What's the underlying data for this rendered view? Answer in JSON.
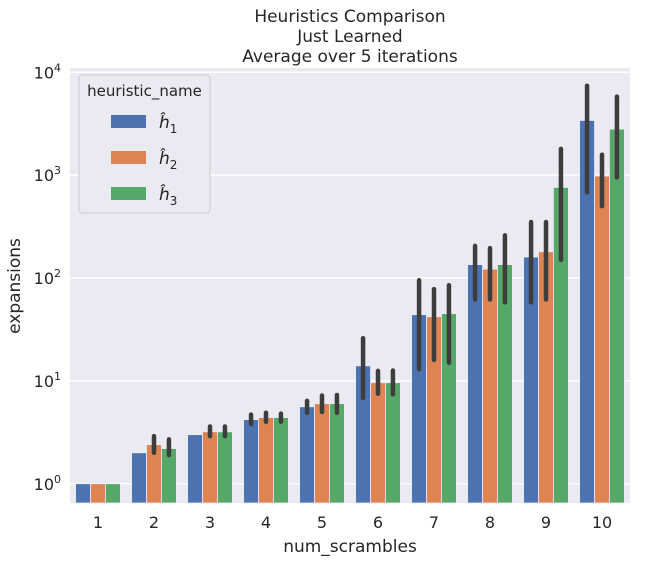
{
  "chart_data": {
    "type": "bar",
    "title": [
      "Heuristics Comparison",
      "Just Learned",
      "Average over 5 iterations"
    ],
    "xlabel": "num_scrambles",
    "ylabel": "expansions",
    "yscale": "log",
    "ylim": [
      0.65,
      11000
    ],
    "ytick_values": [
      1,
      10,
      100,
      1000,
      10000
    ],
    "ytick_labels": [
      {
        "base": "10",
        "exp": "0"
      },
      {
        "base": "10",
        "exp": "1"
      },
      {
        "base": "10",
        "exp": "2"
      },
      {
        "base": "10",
        "exp": "3"
      },
      {
        "base": "10",
        "exp": "4"
      }
    ],
    "categories": [
      "1",
      "2",
      "3",
      "4",
      "5",
      "6",
      "7",
      "8",
      "9",
      "10"
    ],
    "legend": {
      "title": "heuristic_name",
      "placement": "top-left"
    },
    "grid": true,
    "series": [
      {
        "name": "ĥ1",
        "label_main": "ĥ",
        "label_sub": "1",
        "color": "#4c72b0",
        "values": [
          1.0,
          2.0,
          3.0,
          4.2,
          5.6,
          14,
          44,
          135,
          160,
          3400
        ],
        "ci": [
          null,
          null,
          null,
          [
            3.8,
            4.7
          ],
          [
            4.9,
            6.4
          ],
          [
            6.8,
            26
          ],
          [
            13,
            95
          ],
          [
            62,
            205
          ],
          [
            58,
            350
          ],
          [
            680,
            7400
          ]
        ]
      },
      {
        "name": "ĥ2",
        "label_main": "ĥ",
        "label_sub": "2",
        "color": "#dd8452",
        "values": [
          1.0,
          2.4,
          3.2,
          4.4,
          6.0,
          9.6,
          42,
          122,
          180,
          980
        ],
        "ci": [
          null,
          [
            2.0,
            2.9
          ],
          [
            2.9,
            3.6
          ],
          [
            4.0,
            4.9
          ],
          [
            5.0,
            7.2
          ],
          [
            7.5,
            12.5
          ],
          [
            16,
            78
          ],
          [
            62,
            195
          ],
          [
            62,
            350
          ],
          [
            500,
            1580
          ]
        ]
      },
      {
        "name": "ĥ3",
        "label_main": "ĥ",
        "label_sub": "3",
        "color": "#55a868",
        "values": [
          1.0,
          2.2,
          3.2,
          4.4,
          6.0,
          9.6,
          45,
          135,
          760,
          2800
        ],
        "ci": [
          null,
          [
            1.9,
            2.7
          ],
          [
            2.9,
            3.6
          ],
          [
            4.0,
            4.8
          ],
          [
            4.9,
            7.3
          ],
          [
            7.4,
            12.6
          ],
          [
            15,
            85
          ],
          [
            58,
            260
          ],
          [
            150,
            1800
          ],
          [
            950,
            5800
          ]
        ]
      }
    ]
  }
}
